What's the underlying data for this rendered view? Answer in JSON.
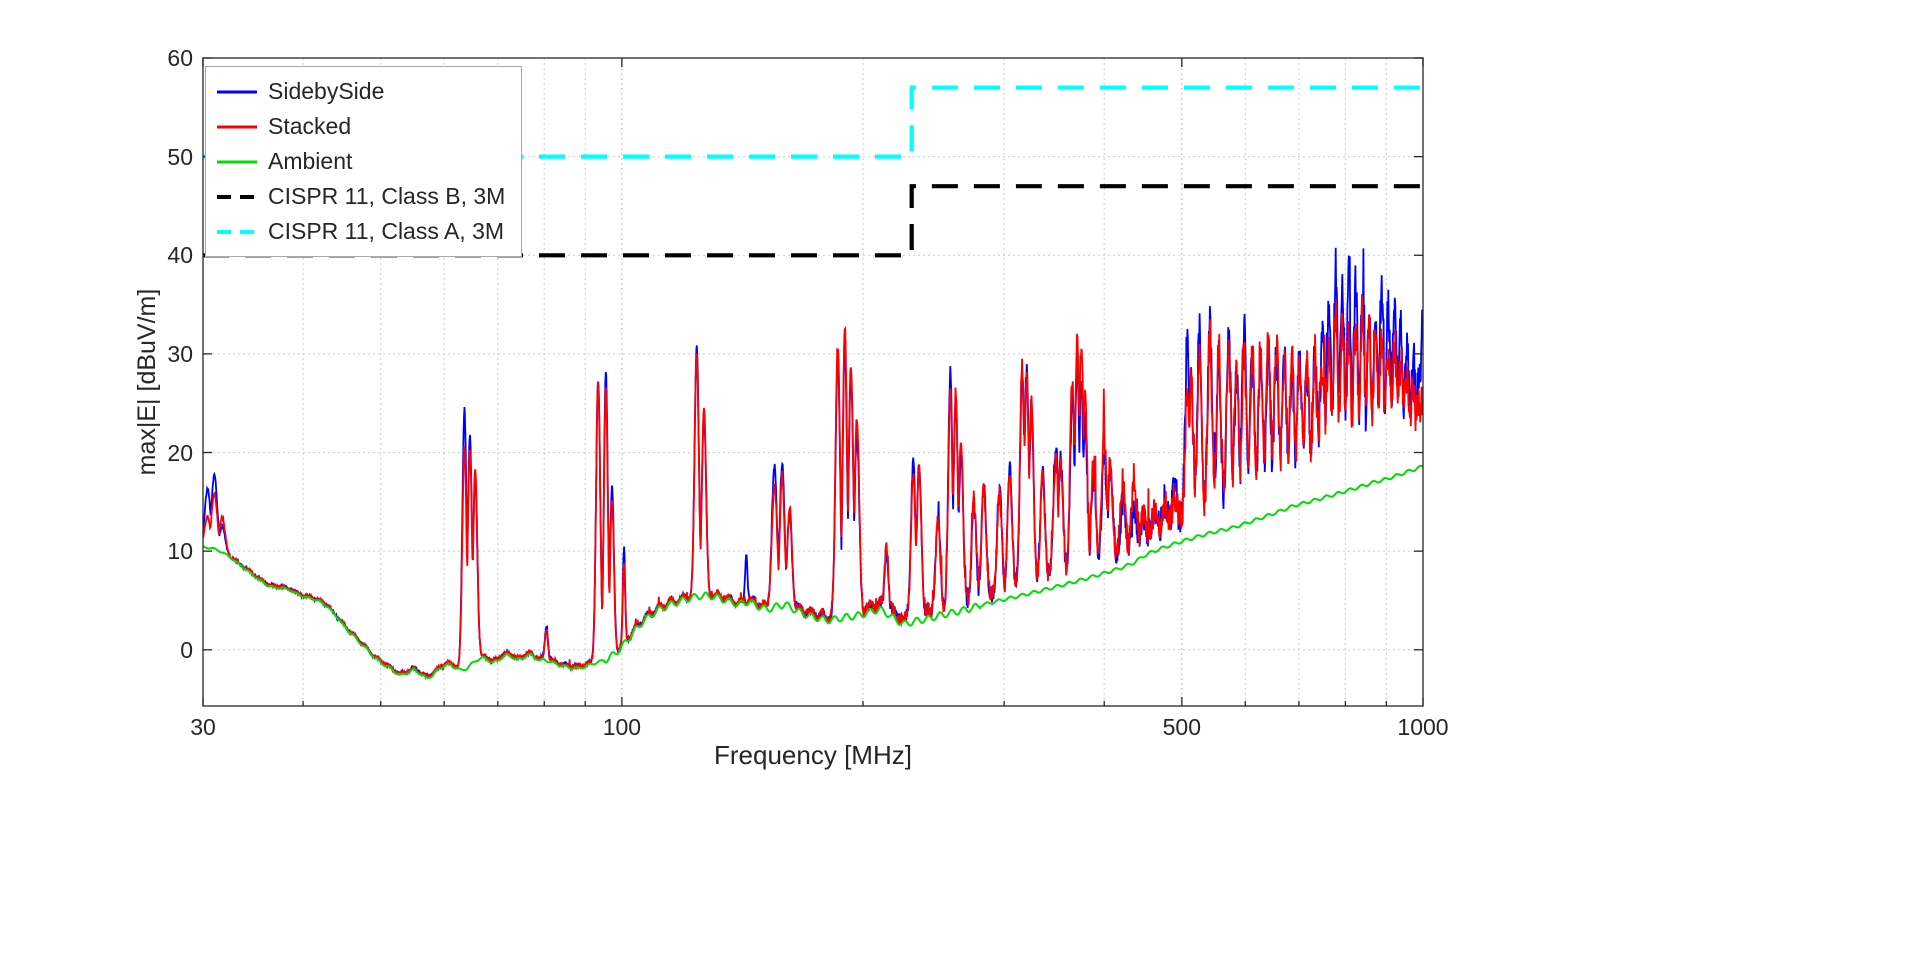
{
  "chart_data": {
    "type": "line",
    "title": "",
    "xlabel": "Frequency [MHz]",
    "ylabel": "max|E| [dBuV/m]",
    "x_scale": "log",
    "xlim": [
      30,
      1000
    ],
    "ylim": [
      -5.7,
      60
    ],
    "x_major_ticks": [
      30,
      100,
      500,
      1000
    ],
    "x_minor_ticks": [
      40,
      50,
      60,
      70,
      80,
      90,
      200,
      300,
      400,
      600,
      700,
      800,
      900
    ],
    "y_major_ticks": [
      0,
      10,
      20,
      30,
      40,
      50,
      60
    ],
    "grid": true,
    "legend_position": "top-left",
    "colors": {
      "sidebyside": "#0000ff",
      "stacked": "#ff0000",
      "ambient": "#00dd00",
      "class_b": "#000000",
      "class_a": "#00ffff",
      "axis": "#262626",
      "grid_major": "#bbbbbb",
      "grid_minor": "#cccccc"
    },
    "series": [
      {
        "name": "SidebySide",
        "color": "#0000ff",
        "dash": false,
        "kind": "measured-sbs"
      },
      {
        "name": "Stacked",
        "color": "#ff0000",
        "dash": false,
        "kind": "measured-stk"
      },
      {
        "name": "Ambient",
        "color": "#00dd00",
        "dash": false,
        "kind": "ambient"
      },
      {
        "name": "CISPR 11, Class B, 3M",
        "color": "#000000",
        "dash": true,
        "kind": "limit",
        "points": [
          [
            30,
            40
          ],
          [
            230,
            40
          ],
          [
            230,
            47
          ],
          [
            1000,
            47
          ]
        ]
      },
      {
        "name": "CISPR 11, Class A, 3M",
        "color": "#00ffff",
        "dash": true,
        "kind": "limit",
        "points": [
          [
            30,
            50
          ],
          [
            230,
            50
          ],
          [
            230,
            57
          ],
          [
            1000,
            57
          ]
        ]
      }
    ],
    "ambient_points": [
      [
        30,
        10.4
      ],
      [
        30.8,
        10.3
      ],
      [
        31.5,
        10.0
      ],
      [
        32.3,
        9.5
      ],
      [
        33,
        8.9
      ],
      [
        34,
        8.1
      ],
      [
        35,
        7.3
      ],
      [
        36,
        6.6
      ],
      [
        36.8,
        6.3
      ],
      [
        37.6,
        6.3
      ],
      [
        38.4,
        6.1
      ],
      [
        39.2,
        5.7
      ],
      [
        40,
        5.4
      ],
      [
        41,
        5.2
      ],
      [
        42,
        4.9
      ],
      [
        43,
        4.3
      ],
      [
        44,
        3.4
      ],
      [
        45,
        2.4
      ],
      [
        46,
        1.6
      ],
      [
        47,
        0.8
      ],
      [
        48,
        0.1
      ],
      [
        49,
        -0.7
      ],
      [
        50,
        -1.3
      ],
      [
        51,
        -1.7
      ],
      [
        52,
        -2.2
      ],
      [
        53,
        -2.6
      ],
      [
        54,
        -2.3
      ],
      [
        55,
        -2.0
      ],
      [
        56,
        -2.4
      ],
      [
        57,
        -2.9
      ],
      [
        58,
        -2.6
      ],
      [
        59,
        -2.0
      ],
      [
        60,
        -1.6
      ],
      [
        61,
        -1.5
      ],
      [
        62,
        -1.8
      ],
      [
        63,
        -2.1
      ],
      [
        64,
        -1.9
      ],
      [
        65,
        -1.4
      ],
      [
        66,
        -1.0
      ],
      [
        67,
        -0.8
      ],
      [
        68,
        -1.0
      ],
      [
        69,
        -1.3
      ],
      [
        70,
        -1.1
      ],
      [
        71,
        -0.7
      ],
      [
        72,
        -0.5
      ],
      [
        73,
        -0.7
      ],
      [
        74,
        -1.0
      ],
      [
        75,
        -0.9
      ],
      [
        76,
        -0.6
      ],
      [
        77,
        -0.5
      ],
      [
        78,
        -0.8
      ],
      [
        79,
        -1.1
      ],
      [
        80,
        -1.0
      ],
      [
        82,
        -1.3
      ],
      [
        84,
        -1.6
      ],
      [
        86,
        -1.8
      ],
      [
        88,
        -1.9
      ],
      [
        90,
        -1.7
      ],
      [
        92,
        -1.4
      ],
      [
        94,
        -1.2
      ],
      [
        96,
        -0.9
      ],
      [
        98,
        -0.4
      ],
      [
        100,
        0.3
      ],
      [
        103,
        1.6
      ],
      [
        106,
        2.8
      ],
      [
        109,
        3.6
      ],
      [
        112,
        4.2
      ],
      [
        115,
        4.6
      ],
      [
        118,
        4.9
      ],
      [
        121,
        5.2
      ],
      [
        124,
        5.4
      ],
      [
        127,
        5.5
      ],
      [
        130,
        5.4
      ],
      [
        133,
        5.2
      ],
      [
        136,
        4.9
      ],
      [
        140,
        4.6
      ],
      [
        144,
        4.9
      ],
      [
        148,
        4.4
      ],
      [
        152,
        4.1
      ],
      [
        156,
        4.4
      ],
      [
        160,
        4.6
      ],
      [
        164,
        4.1
      ],
      [
        168,
        3.7
      ],
      [
        172,
        3.4
      ],
      [
        176,
        3.2
      ],
      [
        180,
        3.0
      ],
      [
        185,
        3.1
      ],
      [
        190,
        3.3
      ],
      [
        195,
        3.4
      ],
      [
        200,
        3.6
      ],
      [
        205,
        3.9
      ],
      [
        210,
        4.1
      ],
      [
        215,
        3.6
      ],
      [
        220,
        3.0
      ],
      [
        225,
        2.6
      ],
      [
        230,
        2.8
      ],
      [
        235,
        3.0
      ],
      [
        240,
        3.1
      ],
      [
        245,
        3.3
      ],
      [
        250,
        3.5
      ],
      [
        260,
        3.8
      ],
      [
        270,
        4.1
      ],
      [
        280,
        4.5
      ],
      [
        290,
        4.8
      ],
      [
        300,
        5.1
      ],
      [
        315,
        5.5
      ],
      [
        330,
        5.9
      ],
      [
        345,
        6.3
      ],
      [
        360,
        6.7
      ],
      [
        375,
        7.1
      ],
      [
        390,
        7.5
      ],
      [
        405,
        7.9
      ],
      [
        420,
        8.3
      ],
      [
        435,
        8.8
      ],
      [
        450,
        9.6
      ],
      [
        465,
        10.1
      ],
      [
        480,
        10.5
      ],
      [
        500,
        11.0
      ],
      [
        520,
        11.4
      ],
      [
        540,
        11.8
      ],
      [
        560,
        12.1
      ],
      [
        580,
        12.4
      ],
      [
        600,
        12.8
      ],
      [
        630,
        13.4
      ],
      [
        660,
        14.0
      ],
      [
        690,
        14.6
      ],
      [
        720,
        15.0
      ],
      [
        750,
        15.4
      ],
      [
        780,
        15.8
      ],
      [
        810,
        16.2
      ],
      [
        840,
        16.6
      ],
      [
        870,
        17.0
      ],
      [
        900,
        17.3
      ],
      [
        930,
        17.7
      ],
      [
        960,
        18.1
      ],
      [
        1000,
        18.6
      ]
    ],
    "peaks": [
      [
        30.4,
        16.3,
        13.5,
        0.0035
      ],
      [
        31.0,
        17.6,
        15.7,
        0.0035
      ],
      [
        31.7,
        12.5,
        13.4,
        0.0035
      ],
      [
        63.6,
        24.4,
        20.6,
        0.0026
      ],
      [
        64.6,
        21.5,
        20.2,
        0.0026
      ],
      [
        65.6,
        17.5,
        18.3,
        0.0026
      ],
      [
        80.5,
        2.5,
        2.2,
        0.0018
      ],
      [
        93.4,
        27.1,
        26.9,
        0.0026
      ],
      [
        95.5,
        28.4,
        26.7,
        0.0024
      ],
      [
        97.2,
        16.0,
        14.5,
        0.0024
      ],
      [
        100.6,
        10.0,
        8.5,
        0.0014
      ],
      [
        124.0,
        30.6,
        29.7,
        0.0026
      ],
      [
        126.6,
        23.5,
        24.3,
        0.0026
      ],
      [
        143.0,
        10.0,
        5.0,
        0.0014
      ],
      [
        155.0,
        18.2,
        16.4,
        0.0032
      ],
      [
        158.5,
        19.0,
        17.6,
        0.0028
      ],
      [
        162.0,
        13.4,
        14.0,
        0.0028
      ],
      [
        186.0,
        29.4,
        30.6,
        0.0028
      ],
      [
        189.8,
        30.2,
        32.2,
        0.0026
      ],
      [
        193.2,
        27.4,
        28.6,
        0.0028
      ],
      [
        196.5,
        21.5,
        23.0,
        0.0028
      ],
      [
        214.0,
        9.5,
        10.5,
        0.0022
      ],
      [
        231.0,
        18.4,
        17.0,
        0.0028
      ],
      [
        235.0,
        18.0,
        17.6,
        0.0028
      ],
      [
        248.0,
        13.0,
        12.4,
        0.0028
      ],
      [
        257.0,
        27.1,
        25.1,
        0.0026
      ],
      [
        261.0,
        24.4,
        25.4,
        0.0026
      ],
      [
        265.0,
        19.5,
        20.5,
        0.0026
      ],
      [
        275.0,
        13.5,
        14.2,
        0.0028
      ],
      [
        283.0,
        16.0,
        15.4,
        0.0028
      ],
      [
        296.0,
        15.4,
        14.6,
        0.0028
      ],
      [
        305.0,
        17.4,
        16.2,
        0.0028
      ],
      [
        316.0,
        26.1,
        27.5,
        0.0027
      ],
      [
        320.0,
        27.4,
        26.6,
        0.0027
      ],
      [
        324.5,
        23.4,
        24.2,
        0.0027
      ],
      [
        335.0,
        16.8,
        16.0,
        0.0028
      ],
      [
        348.0,
        19.6,
        18.4,
        0.0028
      ],
      [
        353.0,
        18.0,
        17.4,
        0.0028
      ],
      [
        365.0,
        24.0,
        26.0,
        0.0027
      ],
      [
        370.0,
        27.6,
        30.2,
        0.0026
      ],
      [
        374.5,
        26.0,
        29.4,
        0.0026
      ],
      [
        378.5,
        22.0,
        24.0,
        0.0027
      ],
      [
        388.0,
        16.0,
        17.4,
        0.0028
      ],
      [
        400.0,
        18.4,
        20.0,
        0.0028
      ],
      [
        407.0,
        16.4,
        17.6,
        0.0028
      ],
      [
        422.0,
        13.5,
        15.5,
        0.0028
      ],
      [
        436.0,
        12.5,
        16.0,
        0.0028
      ],
      [
        448.0,
        11.5,
        12.2,
        0.0028
      ],
      [
        462.0,
        12.4,
        12.0,
        0.0028
      ],
      [
        476.0,
        13.0,
        12.6,
        0.0028
      ],
      [
        490.0,
        14.4,
        13.2,
        0.0028
      ],
      [
        508.0,
        29.2,
        24.0,
        0.0026
      ],
      [
        513.5,
        26.0,
        24.6,
        0.0026
      ],
      [
        526.0,
        29.8,
        27.4,
        0.0026
      ],
      [
        542.0,
        31.2,
        28.8,
        0.0026
      ],
      [
        556.0,
        26.4,
        27.5,
        0.0026
      ],
      [
        572.0,
        29.4,
        28.6,
        0.0026
      ],
      [
        585.0,
        25.5,
        26.0,
        0.0026
      ],
      [
        598.0,
        29.6,
        27.0,
        0.0026
      ],
      [
        612.0,
        26.5,
        27.2,
        0.0026
      ],
      [
        627.0,
        26.0,
        27.6,
        0.0026
      ],
      [
        641.0,
        27.4,
        27.9,
        0.0026
      ],
      [
        656.0,
        26.2,
        27.8,
        0.0026
      ],
      [
        671.0,
        27.4,
        25.5,
        0.0026
      ],
      [
        686.0,
        24.5,
        25.8,
        0.0026
      ],
      [
        701.0,
        26.2,
        25.9,
        0.0026
      ],
      [
        716.0,
        25.0,
        25.5,
        0.0026
      ],
      [
        733.0,
        26.3,
        25.2,
        0.0026
      ],
      [
        749.0,
        28.0,
        26.0,
        0.0026
      ],
      [
        763.0,
        30.8,
        27.5,
        0.0026
      ],
      [
        778.0,
        35.2,
        30.8,
        0.0025
      ],
      [
        793.0,
        33.8,
        30.2,
        0.0025
      ],
      [
        808.0,
        34.2,
        29.0,
        0.0025
      ],
      [
        824.0,
        33.5,
        29.5,
        0.0025
      ],
      [
        840.0,
        31.0,
        31.2,
        0.0025
      ],
      [
        856.0,
        30.0,
        29.0,
        0.0025
      ],
      [
        872.0,
        29.0,
        27.5,
        0.0025
      ],
      [
        888.0,
        33.2,
        28.0,
        0.0025
      ],
      [
        905.0,
        31.2,
        27.0,
        0.0025
      ],
      [
        922.0,
        31.4,
        27.2,
        0.0025
      ],
      [
        938.0,
        29.0,
        26.0,
        0.0025
      ],
      [
        955.0,
        27.5,
        24.5,
        0.0025
      ],
      [
        972.0,
        26.0,
        23.0,
        0.0025
      ],
      [
        988.0,
        24.5,
        22.0,
        0.0025
      ],
      [
        999.0,
        29.4,
        22.4,
        0.0022
      ]
    ],
    "measured_offset_points": [
      [
        30,
        0.05
      ],
      [
        150,
        0.2
      ],
      [
        230,
        0.6
      ],
      [
        300,
        1.0
      ],
      [
        450,
        1.8
      ],
      [
        550,
        2.8
      ],
      [
        1000,
        3.8
      ]
    ],
    "noise_amp_points": [
      [
        30,
        0.15
      ],
      [
        140,
        0.3
      ],
      [
        230,
        0.7
      ],
      [
        300,
        0.95
      ],
      [
        450,
        1.5
      ],
      [
        520,
        2.1
      ],
      [
        1000,
        2.4
      ]
    ]
  }
}
